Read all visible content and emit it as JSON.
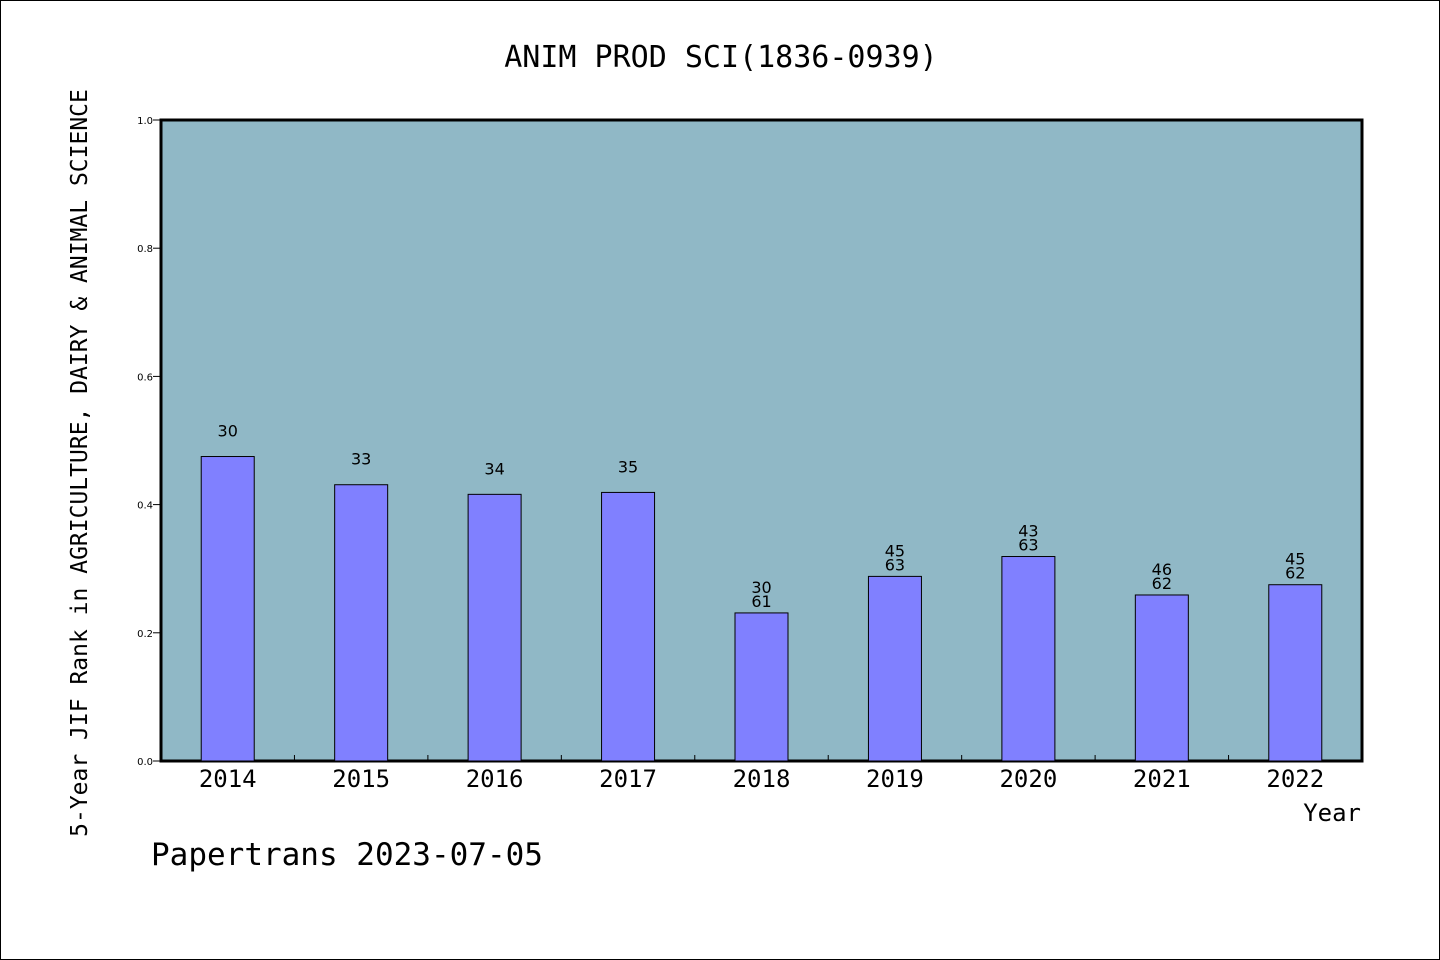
{
  "chart_data": {
    "type": "bar",
    "title": "ANIM PROD SCI(1836-0939)",
    "xlabel": "Year",
    "ylabel": "5-Year JIF Rank in AGRICULTURE, DAIRY & ANIMAL SCIENCE",
    "footer": "Papertrans 2023-07-05",
    "categories": [
      "2014",
      "2015",
      "2016",
      "2017",
      "2018",
      "2019",
      "2020",
      "2021",
      "2022"
    ],
    "values": [
      0.475,
      0.431,
      0.416,
      0.419,
      0.231,
      0.288,
      0.319,
      0.259,
      0.275
    ],
    "bar_labels": [
      [
        "30"
      ],
      [
        "33"
      ],
      [
        "34"
      ],
      [
        "35"
      ],
      [
        "30",
        "61"
      ],
      [
        "45",
        "63"
      ],
      [
        "43",
        "63"
      ],
      [
        "46",
        "62"
      ],
      [
        "45",
        "62"
      ]
    ],
    "ylim": [
      0,
      1.0
    ],
    "yticks": [
      "0.0",
      "0.2",
      "0.4",
      "0.6",
      "0.8",
      "1.0"
    ],
    "grid": false,
    "legend": "none",
    "colors": {
      "plot_background": "#90B8C6",
      "bar_fill": "#8080FF",
      "bar_stroke": "#000000",
      "text": "#000000"
    }
  }
}
